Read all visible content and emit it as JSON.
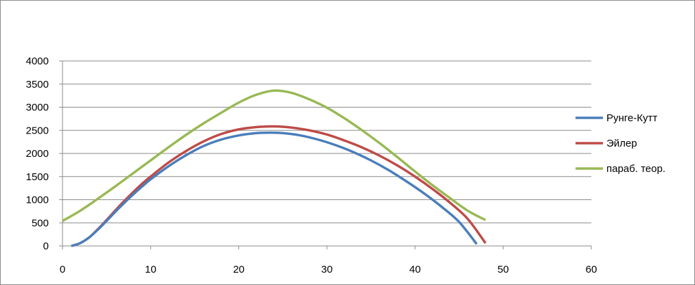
{
  "chart_data": {
    "type": "line",
    "title": "",
    "xlabel": "",
    "ylabel": "",
    "xlim": [
      0,
      60
    ],
    "ylim": [
      0,
      4000
    ],
    "x_ticks": [
      "0",
      "10",
      "20",
      "30",
      "40",
      "50",
      "60"
    ],
    "y_ticks": [
      "0",
      "500",
      "1000",
      "1500",
      "2000",
      "2500",
      "3000",
      "3500",
      "4000"
    ],
    "grid": "horizontal",
    "legend_position": "right",
    "series": [
      {
        "name": "Рунге-Кутт",
        "color": "#4a7ebb",
        "points": [
          [
            1,
            0
          ],
          [
            2,
            60
          ],
          [
            3,
            180
          ],
          [
            4,
            350
          ],
          [
            5,
            540
          ],
          [
            6,
            740
          ],
          [
            7,
            930
          ],
          [
            8,
            1110
          ],
          [
            9,
            1280
          ],
          [
            10,
            1440
          ],
          [
            12,
            1720
          ],
          [
            14,
            1960
          ],
          [
            16,
            2160
          ],
          [
            18,
            2300
          ],
          [
            20,
            2390
          ],
          [
            22,
            2440
          ],
          [
            23.5,
            2450
          ],
          [
            25,
            2440
          ],
          [
            27,
            2390
          ],
          [
            29,
            2300
          ],
          [
            31,
            2180
          ],
          [
            33,
            2030
          ],
          [
            35,
            1850
          ],
          [
            37,
            1640
          ],
          [
            39,
            1400
          ],
          [
            41,
            1140
          ],
          [
            43,
            850
          ],
          [
            45,
            520
          ],
          [
            47,
            40
          ]
        ]
      },
      {
        "name": "Эйлер",
        "color": "#be4b48",
        "points": [
          [
            1,
            0
          ],
          [
            2,
            60
          ],
          [
            3,
            180
          ],
          [
            4,
            360
          ],
          [
            5,
            560
          ],
          [
            6,
            770
          ],
          [
            7,
            970
          ],
          [
            8,
            1160
          ],
          [
            9,
            1340
          ],
          [
            10,
            1500
          ],
          [
            12,
            1800
          ],
          [
            14,
            2050
          ],
          [
            16,
            2260
          ],
          [
            18,
            2420
          ],
          [
            20,
            2520
          ],
          [
            22,
            2570
          ],
          [
            24,
            2585
          ],
          [
            26,
            2560
          ],
          [
            28,
            2500
          ],
          [
            30,
            2410
          ],
          [
            32,
            2280
          ],
          [
            34,
            2130
          ],
          [
            36,
            1950
          ],
          [
            38,
            1740
          ],
          [
            40,
            1500
          ],
          [
            42,
            1230
          ],
          [
            44,
            930
          ],
          [
            46,
            580
          ],
          [
            48,
            60
          ]
        ]
      },
      {
        "name": "параб. теор.",
        "color": "#98b954",
        "points": [
          [
            0,
            540
          ],
          [
            2,
            760
          ],
          [
            4,
            1020
          ],
          [
            6,
            1290
          ],
          [
            8,
            1570
          ],
          [
            10,
            1850
          ],
          [
            12,
            2130
          ],
          [
            14,
            2400
          ],
          [
            16,
            2650
          ],
          [
            18,
            2880
          ],
          [
            20,
            3100
          ],
          [
            22,
            3270
          ],
          [
            24,
            3360
          ],
          [
            26,
            3310
          ],
          [
            28,
            3170
          ],
          [
            30,
            2990
          ],
          [
            32,
            2760
          ],
          [
            34,
            2500
          ],
          [
            36,
            2220
          ],
          [
            38,
            1920
          ],
          [
            40,
            1610
          ],
          [
            42,
            1310
          ],
          [
            44,
            1030
          ],
          [
            46,
            760
          ],
          [
            48,
            560
          ]
        ]
      }
    ]
  }
}
